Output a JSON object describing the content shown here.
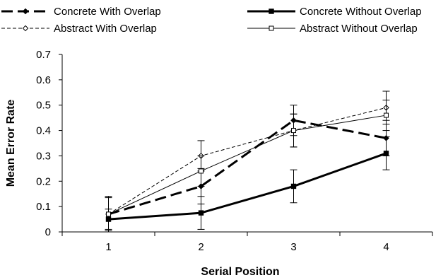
{
  "chart_data": {
    "type": "line",
    "title": "",
    "xlabel": "Serial Position",
    "ylabel": "Mean Error Rate",
    "categories": [
      "1",
      "2",
      "3",
      "4"
    ],
    "x": [
      1,
      2,
      3,
      4
    ],
    "xlim": [
      0.5,
      4.5
    ],
    "ylim": [
      0,
      0.7
    ],
    "yticks": [
      "0",
      "0.1",
      "0.2",
      "0.3",
      "0.4",
      "0.5",
      "0.6",
      "0.7"
    ],
    "ytick_values": [
      0,
      0.1,
      0.2,
      0.3,
      0.4,
      0.5,
      0.6,
      0.7
    ],
    "grid": false,
    "legend_position": "top",
    "series": [
      {
        "name": "Concrete With Overlap",
        "values": [
          0.07,
          0.18,
          0.44,
          0.37
        ],
        "errors": [
          0.07,
          0.07,
          0.06,
          0.07
        ],
        "style": "dashed-thick",
        "marker": "diamond-filled",
        "color": "#000000"
      },
      {
        "name": "Concrete Without Overlap",
        "values": [
          0.05,
          0.075,
          0.18,
          0.31
        ],
        "errors": [
          0.04,
          0.065,
          0.065,
          0.065
        ],
        "style": "solid-thick",
        "marker": "square-filled",
        "color": "#000000"
      },
      {
        "name": "Abstract With Overlap",
        "values": [
          0.07,
          0.3,
          0.4,
          0.49
        ],
        "errors": [
          0.07,
          0.06,
          0.065,
          0.065
        ],
        "style": "dashed-thin",
        "marker": "diamond-open",
        "color": "#000000"
      },
      {
        "name": "Abstract Without Overlap",
        "values": [
          0.07,
          0.24,
          0.4,
          0.46
        ],
        "errors": [
          0.065,
          0.06,
          0.065,
          0.06
        ],
        "style": "solid-thin",
        "marker": "square-open",
        "color": "#000000"
      }
    ]
  }
}
